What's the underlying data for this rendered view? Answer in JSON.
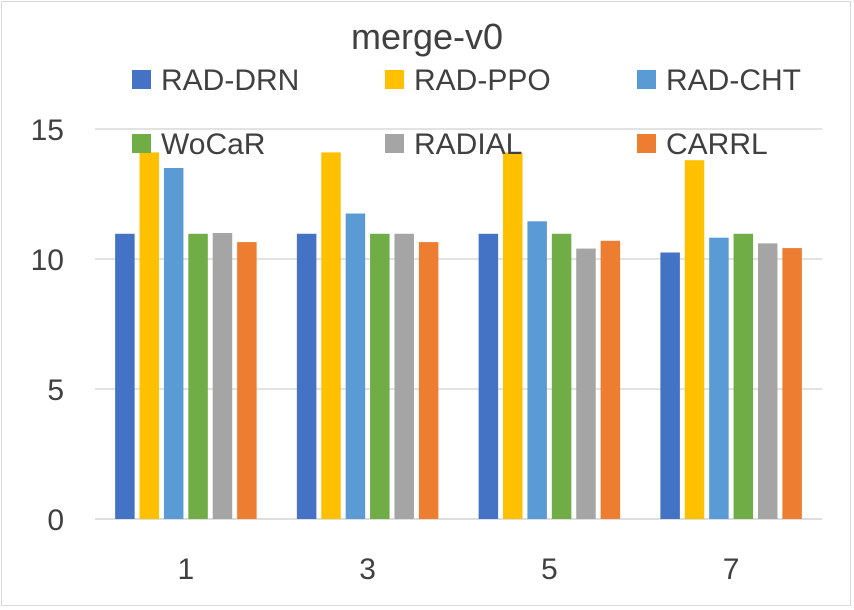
{
  "chart_data": {
    "type": "bar",
    "title": "merge-v0",
    "xlabel": "",
    "ylabel": "",
    "categories": [
      "1",
      "3",
      "5",
      "7"
    ],
    "ylim": [
      0,
      15
    ],
    "yticks": [
      0,
      5,
      10,
      15
    ],
    "grid": true,
    "legend_position": "top",
    "series": [
      {
        "name": "RAD-DRN",
        "color": "#4472c4",
        "values": [
          10.97,
          10.97,
          10.97,
          10.25
        ]
      },
      {
        "name": "RAD-PPO",
        "color": "#ffc000",
        "values": [
          14.1,
          14.1,
          14.1,
          13.8
        ]
      },
      {
        "name": "RAD-CHT",
        "color": "#5b9bd5",
        "values": [
          13.5,
          11.75,
          11.45,
          10.82
        ]
      },
      {
        "name": "WoCaR",
        "color": "#70ad47",
        "values": [
          10.97,
          10.97,
          10.97,
          10.97
        ]
      },
      {
        "name": "RADIAL",
        "color": "#a5a5a5",
        "values": [
          11.0,
          10.97,
          10.4,
          10.6
        ]
      },
      {
        "name": "CARRL",
        "color": "#ed7d31",
        "values": [
          10.65,
          10.65,
          10.7,
          10.42
        ]
      }
    ]
  }
}
